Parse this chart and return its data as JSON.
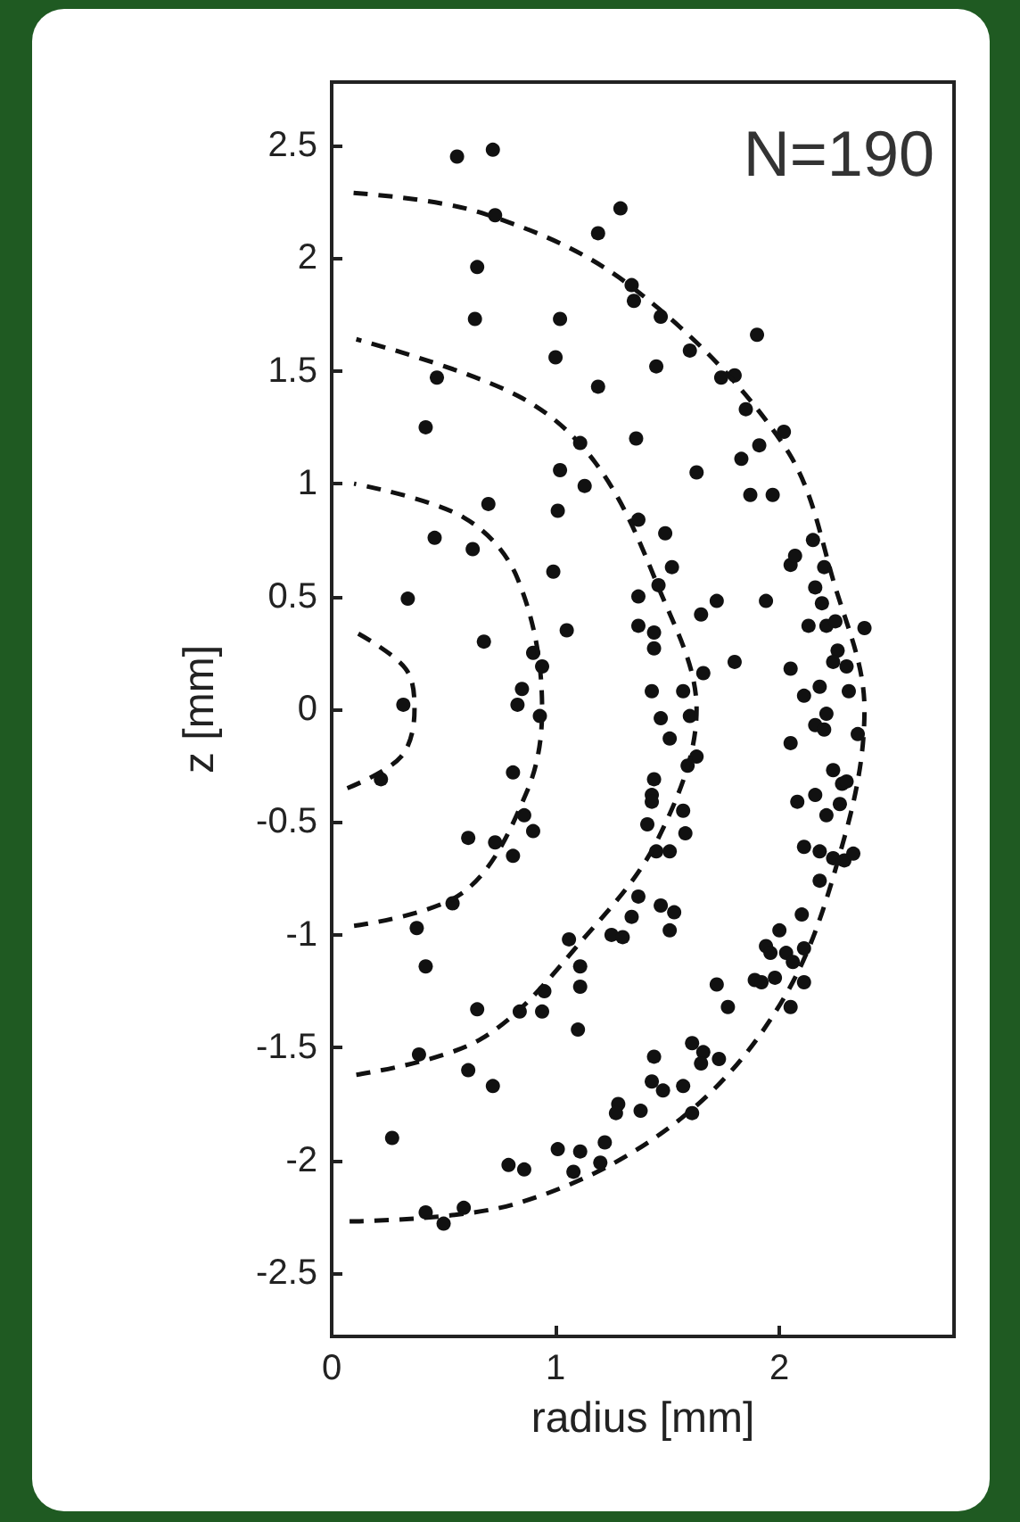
{
  "chart_data": {
    "type": "scatter",
    "xlabel": "radius [mm]",
    "ylabel": "z [mm]",
    "annotations": [
      "N=190"
    ],
    "xlim": [
      0,
      2.78
    ],
    "ylim": [
      -2.78,
      2.78
    ],
    "xticks": [
      0,
      1,
      2
    ],
    "yticks": [
      -2.5,
      -2,
      -1.5,
      -1,
      -0.5,
      0,
      0.5,
      1,
      1.5,
      2,
      2.5
    ],
    "grid": false,
    "series": [
      {
        "color": "#111111",
        "marker": "circle",
        "x": [
          0.56,
          0.72,
          0.73,
          1.29,
          1.19,
          1.34,
          1.35,
          0.65,
          0.64,
          1.02,
          1.0,
          0.47,
          1.19,
          0.42,
          1.11,
          1.36,
          1.02,
          1.13,
          0.7,
          1.01,
          1.47,
          1.9,
          1.45,
          1.6,
          1.74,
          1.8,
          1.85,
          2.02,
          1.91,
          1.83,
          1.63,
          1.87,
          1.97,
          0.46,
          0.63,
          0.99,
          0.34,
          1.05,
          0.68,
          0.9,
          0.94,
          0.85,
          0.83,
          0.93,
          0.32,
          0.22,
          0.81,
          0.86,
          0.9,
          0.61,
          0.73,
          0.81,
          0.54,
          0.38,
          1.06,
          1.25,
          1.3,
          1.37,
          1.37,
          1.37,
          1.37,
          1.49,
          1.52,
          1.46,
          1.72,
          1.65,
          1.44,
          1.44,
          1.66,
          1.8,
          1.43,
          1.57,
          1.47,
          1.6,
          1.51,
          1.63,
          1.59,
          1.44,
          1.43,
          1.43,
          1.57,
          1.41,
          1.58,
          1.45,
          1.51,
          1.47,
          1.53,
          1.51,
          1.34,
          2.15,
          2.05,
          2.07,
          2.2,
          1.94,
          2.16,
          2.19,
          2.13,
          2.21,
          2.25,
          2.38,
          2.26,
          2.24,
          2.3,
          2.05,
          2.11,
          2.18,
          2.31,
          2.21,
          2.16,
          2.2,
          2.35,
          2.05,
          2.24,
          2.28,
          2.3,
          2.16,
          2.08,
          2.27,
          2.21,
          2.11,
          2.18,
          2.24,
          2.29,
          2.33,
          2.18,
          2.1,
          2.0,
          1.94,
          2.11,
          0.42,
          0.65,
          0.84,
          0.94,
          0.95,
          1.11,
          1.11,
          1.1,
          0.39,
          0.61,
          0.72,
          0.27,
          1.28,
          1.27,
          1.38,
          1.22,
          1.01,
          1.11,
          1.08,
          1.2,
          0.79,
          0.86,
          0.59,
          0.42,
          0.5,
          1.96,
          2.03,
          2.06,
          1.89,
          1.92,
          1.98,
          2.11,
          2.05,
          1.72,
          1.77,
          1.44,
          1.61,
          1.66,
          1.65,
          1.73,
          1.43,
          1.48,
          1.57,
          1.61
        ],
        "values": [
          2.45,
          2.48,
          2.19,
          2.22,
          2.11,
          1.88,
          1.81,
          1.96,
          1.73,
          1.73,
          1.56,
          1.47,
          1.43,
          1.25,
          1.18,
          1.2,
          1.06,
          0.99,
          0.91,
          0.88,
          1.74,
          1.66,
          1.52,
          1.59,
          1.47,
          1.48,
          1.33,
          1.23,
          1.17,
          1.11,
          1.05,
          0.95,
          0.95,
          0.76,
          0.71,
          0.61,
          0.49,
          0.35,
          0.3,
          0.25,
          0.19,
          0.09,
          0.02,
          -0.03,
          0.02,
          -0.31,
          -0.28,
          -0.47,
          -0.54,
          -0.57,
          -0.59,
          -0.65,
          -0.86,
          -0.97,
          -1.02,
          -1.0,
          -1.01,
          -0.83,
          0.5,
          0.37,
          0.84,
          0.78,
          0.63,
          0.55,
          0.48,
          0.42,
          0.34,
          0.27,
          0.16,
          0.21,
          0.08,
          0.08,
          -0.04,
          -0.03,
          -0.13,
          -0.21,
          -0.25,
          -0.31,
          -0.38,
          -0.41,
          -0.45,
          -0.51,
          -0.55,
          -0.63,
          -0.63,
          -0.87,
          -0.9,
          -0.98,
          -0.92,
          0.75,
          0.64,
          0.68,
          0.63,
          0.48,
          0.54,
          0.47,
          0.37,
          0.37,
          0.39,
          0.36,
          0.26,
          0.21,
          0.19,
          0.18,
          0.06,
          0.1,
          0.08,
          -0.02,
          -0.07,
          -0.09,
          -0.11,
          -0.15,
          -0.27,
          -0.33,
          -0.32,
          -0.38,
          -0.41,
          -0.42,
          -0.47,
          -0.61,
          -0.63,
          -0.66,
          -0.67,
          -0.64,
          -0.76,
          -0.91,
          -0.98,
          -1.05,
          -1.06,
          -1.14,
          -1.33,
          -1.34,
          -1.34,
          -1.25,
          -1.14,
          -1.23,
          -1.42,
          -1.53,
          -1.6,
          -1.67,
          -1.9,
          -1.75,
          -1.79,
          -1.78,
          -1.92,
          -1.95,
          -1.96,
          -2.05,
          -2.01,
          -2.02,
          -2.04,
          -2.21,
          -2.23,
          -2.28,
          -1.08,
          -1.08,
          -1.12,
          -1.2,
          -1.21,
          -1.19,
          -1.21,
          -1.32,
          -1.22,
          -1.32,
          -1.54,
          -1.48,
          -1.52,
          -1.57,
          -1.55,
          -1.65,
          -1.69,
          -1.67,
          -1.79
        ]
      },
      {
        "type": "line",
        "color": "#111111",
        "marker": "none",
        "line_style": "dashed",
        "x": [
          0.07,
          0.31,
          0.37,
          0.33,
          0.11
        ],
        "values": [
          -0.35,
          -0.21,
          0,
          0.18,
          0.34
        ]
      },
      {
        "type": "line",
        "color": "#111111",
        "marker": "none",
        "line_style": "dashed",
        "x": [
          0.1,
          0.59,
          0.87,
          0.94,
          0.83,
          0.59,
          0.1
        ],
        "values": [
          -0.96,
          -0.81,
          -0.37,
          0,
          0.58,
          0.85,
          1.0
        ]
      },
      {
        "type": "line",
        "color": "#111111",
        "marker": "none",
        "line_style": "dashed",
        "x": [
          0.11,
          0.67,
          1.14,
          1.46,
          1.63,
          1.46,
          1.18,
          0.83,
          0.11
        ],
        "values": [
          -1.62,
          -1.46,
          -1.0,
          -0.57,
          0,
          0.54,
          1.09,
          1.39,
          1.64
        ]
      },
      {
        "type": "line",
        "color": "#111111",
        "marker": "none",
        "line_style": "dashed",
        "x": [
          0.08,
          0.83,
          1.54,
          2.02,
          2.29,
          2.38,
          2.25,
          2.02,
          1.33,
          0.67,
          0.08
        ],
        "values": [
          -2.27,
          -2.19,
          -1.83,
          -1.28,
          -0.57,
          0,
          0.54,
          1.17,
          1.88,
          2.2,
          2.29
        ]
      }
    ]
  }
}
